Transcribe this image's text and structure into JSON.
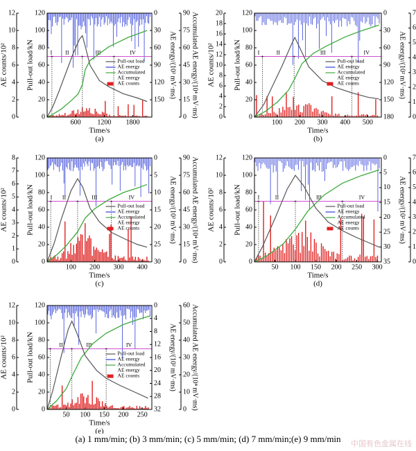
{
  "caption": "(a) 1 mm/min; (b) 3 mm/min; (c) 5 mm/min; (d) 7 mm/min;(e) 9 mm/min",
  "watermark": "中国有色金属在线",
  "colors": {
    "load": "#555555",
    "ae_energy": "#2f3fd8",
    "accumulated": "#3caa3c",
    "ae_counts": "#e02020",
    "stage_line": "#d04fd0"
  },
  "chart_data": [
    {
      "type": "line",
      "panel": "(a)",
      "xlabel": "Time/s",
      "x_ticks": [
        "600",
        "1200",
        "1800"
      ],
      "xlim": [
        0,
        2200
      ],
      "left_outer_label": "AE counts/10²",
      "left_outer_ticks": [
        "0",
        "2",
        "4",
        "6",
        "8",
        "10",
        "12"
      ],
      "left_outer_lim": [
        0,
        12
      ],
      "left_inner_label": "Pull-out load/kN",
      "left_inner_ticks": [
        "0",
        "20",
        "40",
        "60",
        "80",
        "100",
        "120"
      ],
      "left_inner_lim": [
        0,
        120
      ],
      "right_inner_label": "AE energy/(10² mV·ms)",
      "right_inner_ticks": [
        "0",
        "30",
        "60",
        "90",
        "120",
        "150"
      ],
      "right_inner_lim": [
        0,
        180
      ],
      "right_inner_reversed": true,
      "right_outer_label": "Accumulated AE energy/(10⁴ mV·ms)",
      "right_outer_ticks": [
        "0",
        "15",
        "30",
        "45",
        "60",
        "75",
        "90"
      ],
      "right_outer_lim": [
        0,
        90
      ],
      "legend": [
        "Pull-out load",
        "AE energy",
        "Accumulated AE energy",
        "AE counts"
      ],
      "stage_labels": [
        "I",
        "II",
        "III",
        "IV"
      ],
      "stage_level": 70,
      "stage_boundaries": [
        100,
        740,
        1400
      ],
      "load": [
        [
          0,
          0
        ],
        [
          120,
          12
        ],
        [
          250,
          30
        ],
        [
          400,
          52
        ],
        [
          550,
          74
        ],
        [
          680,
          90
        ],
        [
          740,
          94
        ],
        [
          800,
          82
        ],
        [
          900,
          60
        ],
        [
          1100,
          42
        ],
        [
          1300,
          35
        ],
        [
          1600,
          27
        ],
        [
          1900,
          22
        ],
        [
          2100,
          18
        ]
      ],
      "accumulated": [
        [
          0,
          0
        ],
        [
          100,
          2
        ],
        [
          300,
          7
        ],
        [
          500,
          14
        ],
        [
          650,
          20
        ],
        [
          740,
          28
        ],
        [
          800,
          41
        ],
        [
          900,
          49
        ],
        [
          1100,
          55
        ],
        [
          1300,
          61
        ],
        [
          1500,
          65
        ],
        [
          1700,
          69
        ],
        [
          1900,
          72
        ],
        [
          2100,
          75
        ]
      ],
      "ae_counts_peak": 2.0
    },
    {
      "type": "line",
      "panel": "(b)",
      "xlabel": "Time/s",
      "x_ticks": [
        "100",
        "200",
        "300",
        "400",
        "500"
      ],
      "xlim": [
        0,
        560
      ],
      "left_outer_label": "AE counts/10²",
      "left_outer_ticks": [
        "0",
        "2",
        "4",
        "6",
        "8",
        "10",
        "12",
        "14",
        "16",
        "18",
        "20"
      ],
      "left_outer_lim": [
        0,
        20
      ],
      "left_inner_label": "Pull-out load/kN",
      "left_inner_ticks": [
        "0",
        "20",
        "40",
        "60",
        "80",
        "100",
        "120"
      ],
      "left_inner_lim": [
        0,
        120
      ],
      "right_inner_label": "AE energy/(10² mV·ms)",
      "right_inner_ticks": [
        "0",
        "30",
        "60",
        "90",
        "120",
        "150",
        "180"
      ],
      "right_inner_lim": [
        0,
        180
      ],
      "right_inner_reversed": true,
      "right_outer_label": "Accumulated AE energy/(10⁴ mV·ms)",
      "right_outer_ticks": [
        "0",
        "10",
        "20",
        "30",
        "40",
        "50",
        "60",
        "70"
      ],
      "right_outer_lim": [
        0,
        70
      ],
      "legend": [
        "Pull-out load",
        "AE energy",
        "Accumulated AE energy",
        "AE counts"
      ],
      "stage_labels": [
        "I",
        "II",
        "III",
        "IV"
      ],
      "stage_level": 70,
      "stage_boundaries": [
        35,
        175,
        430
      ],
      "load": [
        [
          0,
          0
        ],
        [
          40,
          14
        ],
        [
          80,
          36
        ],
        [
          120,
          58
        ],
        [
          160,
          82
        ],
        [
          178,
          92
        ],
        [
          200,
          80
        ],
        [
          240,
          58
        ],
        [
          300,
          42
        ],
        [
          360,
          34
        ],
        [
          430,
          28
        ],
        [
          500,
          23
        ],
        [
          550,
          21
        ]
      ],
      "accumulated": [
        [
          0,
          0
        ],
        [
          50,
          4
        ],
        [
          100,
          10
        ],
        [
          150,
          18
        ],
        [
          178,
          26
        ],
        [
          210,
          36
        ],
        [
          260,
          43
        ],
        [
          320,
          48
        ],
        [
          400,
          54
        ],
        [
          470,
          58
        ],
        [
          550,
          62
        ]
      ],
      "ae_counts_peak": 5.0
    },
    {
      "type": "line",
      "panel": "(c)",
      "xlabel": "Time/s",
      "x_ticks": [
        "100",
        "200",
        "300",
        "400"
      ],
      "xlim": [
        0,
        440
      ],
      "left_outer_label": "AE counts/10²",
      "left_outer_ticks": [
        "0",
        "1",
        "2",
        "3",
        "4",
        "5",
        "6",
        "7",
        "8"
      ],
      "left_outer_lim": [
        0,
        8
      ],
      "left_inner_label": "Pull-out load/kN",
      "left_inner_ticks": [
        "0",
        "20",
        "40",
        "60",
        "80",
        "100",
        "120"
      ],
      "left_inner_lim": [
        0,
        120
      ],
      "right_inner_label": "AE energy/(10² mV·ms)",
      "right_inner_ticks": [
        "0",
        "5",
        "10",
        "15",
        "20",
        "25",
        "30"
      ],
      "right_inner_lim": [
        0,
        30
      ],
      "right_inner_reversed": true,
      "right_outer_label": "Accumulated AE energy/(10⁴ mV·ms)",
      "right_outer_ticks": [
        "0",
        "15",
        "30",
        "45",
        "60",
        "75",
        "90"
      ],
      "right_outer_lim": [
        0,
        90
      ],
      "legend": [
        "Pull-out load",
        "AE energy",
        "Accumulated AE energy",
        "AE counts"
      ],
      "stage_labels": [
        "I",
        "II",
        "III",
        "IV"
      ],
      "stage_level": 70,
      "stage_boundaries": [
        15,
        128,
        270
      ],
      "load": [
        [
          0,
          0
        ],
        [
          30,
          22
        ],
        [
          60,
          50
        ],
        [
          100,
          82
        ],
        [
          128,
          96
        ],
        [
          150,
          86
        ],
        [
          180,
          62
        ],
        [
          220,
          46
        ],
        [
          270,
          34
        ],
        [
          330,
          26
        ],
        [
          380,
          20
        ],
        [
          420,
          17
        ]
      ],
      "accumulated": [
        [
          0,
          0
        ],
        [
          40,
          6
        ],
        [
          80,
          14
        ],
        [
          128,
          26
        ],
        [
          160,
          38
        ],
        [
          200,
          46
        ],
        [
          260,
          54
        ],
        [
          320,
          60
        ],
        [
          380,
          64
        ],
        [
          420,
          67
        ]
      ],
      "ae_counts_peak": 3.5
    },
    {
      "type": "line",
      "panel": "(d)",
      "xlabel": "Time/s",
      "x_ticks": [
        "50",
        "100",
        "150",
        "200",
        "250",
        "300"
      ],
      "xlim": [
        0,
        310
      ],
      "left_outer_label": "AE counts/10²",
      "left_outer_ticks": [
        "0",
        "2",
        "4",
        "6",
        "8",
        "10",
        "12"
      ],
      "left_outer_lim": [
        0,
        12
      ],
      "left_inner_label": "Pull-out load/kN",
      "left_inner_ticks": [
        "0",
        "20",
        "40",
        "60",
        "80",
        "100",
        "120"
      ],
      "left_inner_lim": [
        0,
        120
      ],
      "right_inner_label": "AE energy/(10² mV·ms)",
      "right_inner_ticks": [
        "0",
        "5",
        "10",
        "15",
        "20",
        "25",
        "30",
        "35"
      ],
      "right_inner_lim": [
        0,
        35
      ],
      "right_inner_reversed": true,
      "right_outer_label": "Accumulated AE energy/(10⁴ mV·ms)",
      "right_outer_ticks": [
        "0",
        "10",
        "20",
        "30",
        "40",
        "50",
        "60",
        "70"
      ],
      "right_outer_lim": [
        0,
        70
      ],
      "legend": [
        "Pull-out load",
        "AE energy",
        "Accumulated AE energy",
        "AE counts"
      ],
      "stage_labels": [
        "I",
        "II",
        "III",
        "IV"
      ],
      "stage_level": 70,
      "stage_boundaries": [
        10,
        100,
        215
      ],
      "load": [
        [
          0,
          0
        ],
        [
          20,
          18
        ],
        [
          50,
          50
        ],
        [
          80,
          84
        ],
        [
          100,
          100
        ],
        [
          120,
          88
        ],
        [
          150,
          62
        ],
        [
          180,
          46
        ],
        [
          215,
          36
        ],
        [
          250,
          28
        ],
        [
          290,
          20
        ],
        [
          305,
          17
        ]
      ],
      "accumulated": [
        [
          0,
          0
        ],
        [
          30,
          4
        ],
        [
          70,
          12
        ],
        [
          100,
          22
        ],
        [
          130,
          34
        ],
        [
          170,
          45
        ],
        [
          215,
          53
        ],
        [
          260,
          58
        ],
        [
          305,
          62
        ]
      ],
      "ae_counts_peak": 7.0
    },
    {
      "type": "line",
      "panel": "(e)",
      "xlabel": "Time/s",
      "x_ticks": [
        "50",
        "100",
        "150",
        "200",
        "250"
      ],
      "xlim": [
        0,
        275
      ],
      "left_outer_label": "AE counts/10²",
      "left_outer_ticks": [
        "0",
        "2",
        "4",
        "6",
        "8",
        "10",
        "12"
      ],
      "left_outer_lim": [
        0,
        12
      ],
      "left_inner_label": "Pull-out load/kN",
      "left_inner_ticks": [
        "0",
        "20",
        "40",
        "60",
        "80",
        "100",
        "120"
      ],
      "left_inner_lim": [
        0,
        120
      ],
      "right_inner_label": "AE energy/(10² mV·ms)",
      "right_inner_ticks": [
        "0",
        "4",
        "8",
        "12",
        "16",
        "20",
        "24",
        "28",
        "32"
      ],
      "right_inner_lim": [
        0,
        32
      ],
      "right_inner_reversed": true,
      "right_outer_label": "Accumulated AE energy/(10⁴ mV·ms)",
      "right_outer_ticks": [
        "0",
        "10",
        "20",
        "30",
        "40",
        "50",
        "60"
      ],
      "right_outer_lim": [
        0,
        60
      ],
      "legend": [
        "Pull-out load",
        "AE energy",
        "Accumulated AE energy",
        "AE counts"
      ],
      "stage_labels": [
        "II",
        "III",
        "IV"
      ],
      "stage_level": 70,
      "stage_boundaries": [
        8,
        65,
        155
      ],
      "load": [
        [
          0,
          0
        ],
        [
          15,
          22
        ],
        [
          35,
          58
        ],
        [
          55,
          92
        ],
        [
          65,
          102
        ],
        [
          80,
          86
        ],
        [
          100,
          62
        ],
        [
          130,
          45
        ],
        [
          155,
          36
        ],
        [
          190,
          28
        ],
        [
          230,
          20
        ],
        [
          265,
          13
        ]
      ],
      "accumulated": [
        [
          0,
          0
        ],
        [
          25,
          5
        ],
        [
          50,
          12
        ],
        [
          65,
          19
        ],
        [
          90,
          30
        ],
        [
          120,
          38
        ],
        [
          155,
          44
        ],
        [
          200,
          49
        ],
        [
          240,
          52
        ],
        [
          270,
          54
        ]
      ],
      "ae_counts_peak": 3.5
    }
  ]
}
